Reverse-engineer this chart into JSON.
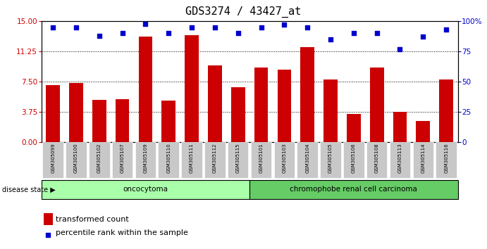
{
  "title": "GDS3274 / 43427_at",
  "samples": [
    "GSM305099",
    "GSM305100",
    "GSM305102",
    "GSM305107",
    "GSM305109",
    "GSM305110",
    "GSM305111",
    "GSM305112",
    "GSM305115",
    "GSM305101",
    "GSM305103",
    "GSM305104",
    "GSM305105",
    "GSM305106",
    "GSM305108",
    "GSM305113",
    "GSM305114",
    "GSM305116"
  ],
  "bar_values": [
    7.1,
    7.3,
    5.2,
    5.3,
    13.1,
    5.1,
    13.3,
    9.5,
    6.8,
    9.2,
    9.0,
    11.8,
    7.8,
    3.5,
    9.2,
    3.7,
    2.6,
    7.8
  ],
  "percentile_values": [
    95,
    95,
    88,
    90,
    98,
    90,
    95,
    95,
    90,
    95,
    97,
    95,
    85,
    90,
    90,
    77,
    87,
    93
  ],
  "ylim_left": [
    0,
    15
  ],
  "ylim_right": [
    0,
    100
  ],
  "yticks_left": [
    0,
    3.75,
    7.5,
    11.25,
    15
  ],
  "yticks_right": [
    0,
    25,
    50,
    75,
    100
  ],
  "bar_color": "#cc0000",
  "dot_color": "#0000cc",
  "group1_label": "oncocytoma",
  "group2_label": "chromophobe renal cell carcinoma",
  "group1_count": 9,
  "group2_count": 9,
  "legend_bar_label": "transformed count",
  "legend_dot_label": "percentile rank within the sample",
  "disease_state_label": "disease state",
  "group1_color": "#aaffaa",
  "group2_color": "#66cc66",
  "tick_label_bg": "#c8c8c8",
  "title_fontsize": 11,
  "legend_fontsize": 8
}
